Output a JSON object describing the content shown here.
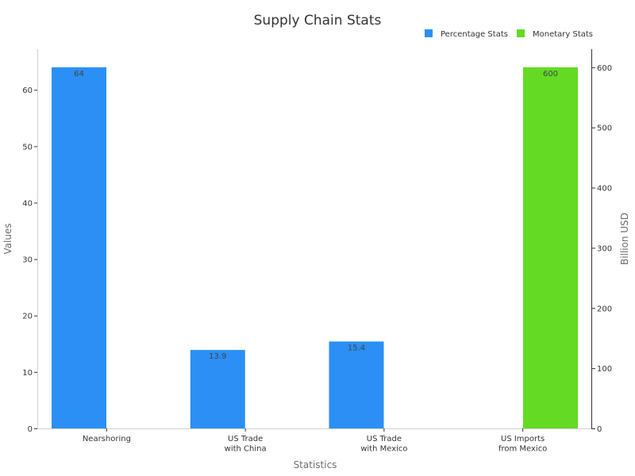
{
  "chart_data": {
    "type": "bar",
    "title": "Supply Chain Stats",
    "xlabel": "Statistics",
    "ylabel": "Values",
    "ylabel_right": "Billion USD",
    "categories": [
      [
        "Nearshoring"
      ],
      [
        "US Trade",
        "with China"
      ],
      [
        "US Trade",
        "with Mexico"
      ],
      [
        "US Imports",
        "from Mexico"
      ]
    ],
    "series": [
      {
        "name": "Percentage Stats",
        "axis": "left",
        "color": "#2b8ff5",
        "values": [
          64,
          13.9,
          15.4,
          null
        ],
        "labels": [
          "64",
          "13.9",
          "15.4",
          ""
        ]
      },
      {
        "name": "Monetary Stats",
        "axis": "right",
        "color": "#64da25",
        "values": [
          null,
          null,
          null,
          600
        ],
        "labels": [
          "",
          "",
          "",
          "600"
        ]
      }
    ],
    "ylim_left": [
      0,
      67.2
    ],
    "ylim_right": [
      0,
      630
    ],
    "yticks_left": [
      "0",
      "10",
      "20",
      "30",
      "40",
      "50",
      "60"
    ],
    "yticks_right": [
      "0",
      "100",
      "200",
      "300",
      "400",
      "500",
      "600"
    ],
    "legend_position": "top-right",
    "grid": false
  }
}
